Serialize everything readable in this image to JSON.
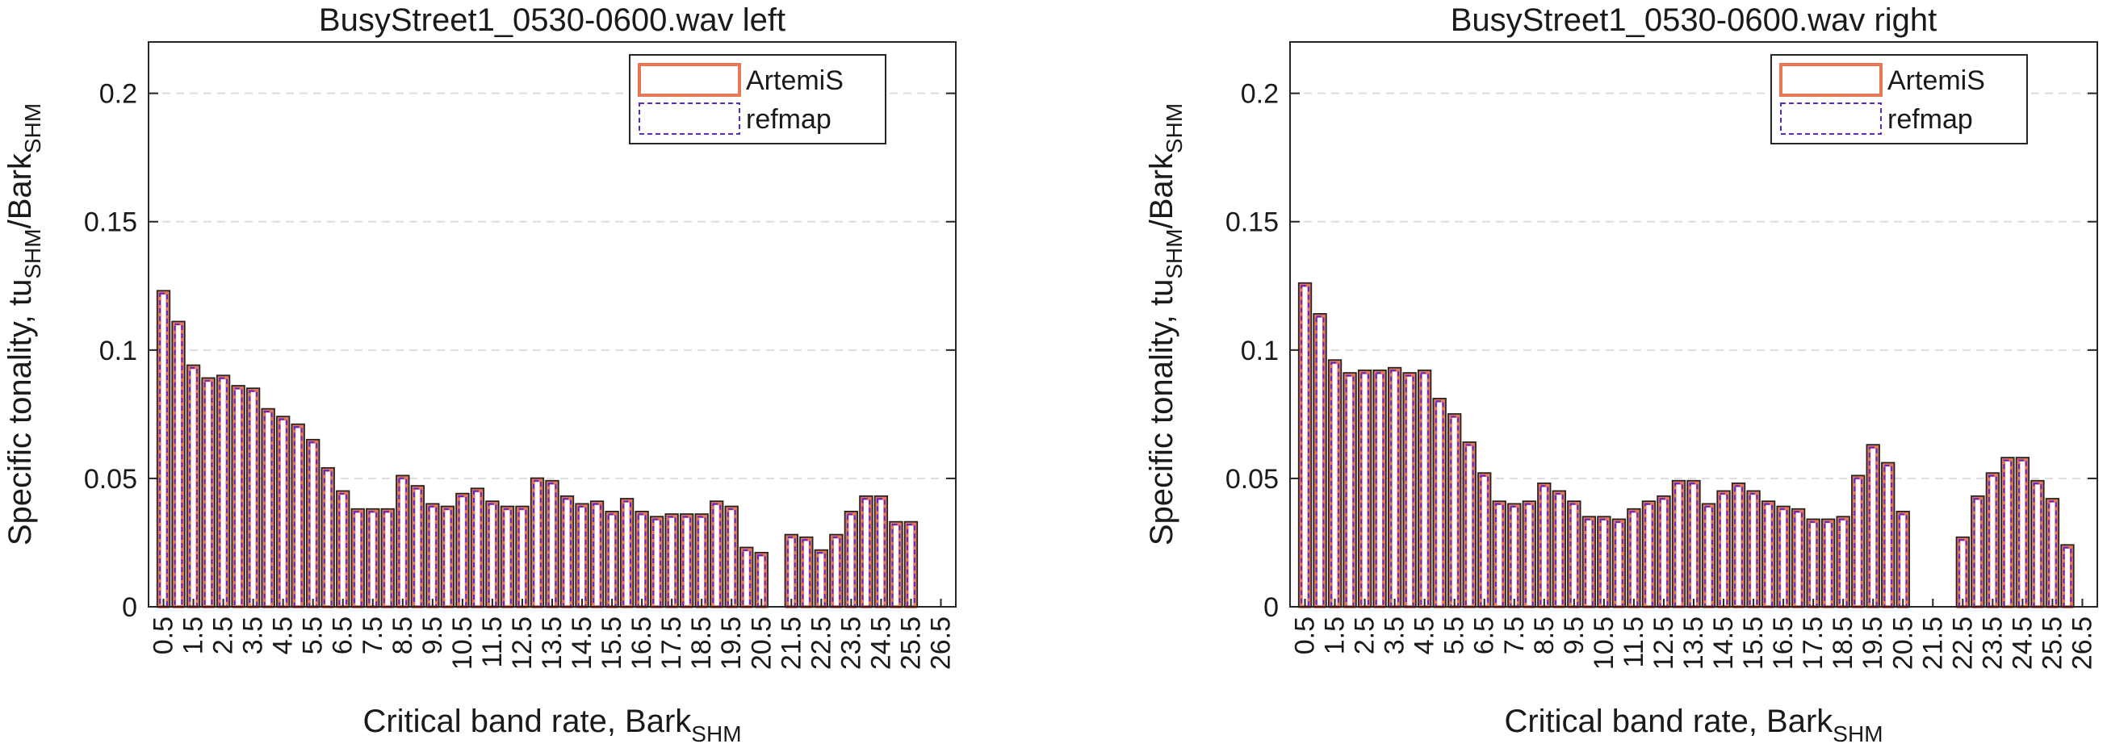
{
  "colors": {
    "artemis": "#e8775a",
    "refmap": "#5a2ad0",
    "outline": "#222222",
    "grid": "#dddddd"
  },
  "chart_data": [
    {
      "type": "bar",
      "title": "BusyStreet1_0530-0600.wav left",
      "xlabel_main": "Critical band rate, Bark",
      "xlabel_sub": "SHM",
      "ylabel_main": "Specific tonality, tu",
      "ylabel_sub1": "SHM",
      "ylabel_mid": "/Bark",
      "ylabel_sub2": "SHM",
      "ylim": [
        0,
        0.22
      ],
      "yticks": [
        0,
        0.05,
        0.1,
        0.15,
        0.2
      ],
      "ytick_labels": [
        "0",
        "0.05",
        "0.1",
        "0.15",
        "0.2"
      ],
      "xlim": [
        0,
        27
      ],
      "categories": [
        "0.5",
        "1.5",
        "2.5",
        "3.5",
        "4.5",
        "5.5",
        "6.5",
        "7.5",
        "8.5",
        "9.5",
        "10.5",
        "11.5",
        "12.5",
        "13.5",
        "14.5",
        "15.5",
        "16.5",
        "17.5",
        "18.5",
        "19.5",
        "20.5",
        "21.5",
        "22.5",
        "23.5",
        "24.5",
        "25.5",
        "26.5"
      ],
      "x": [
        0.5,
        1,
        1.5,
        2,
        2.5,
        3,
        3.5,
        4,
        4.5,
        5,
        5.5,
        6,
        6.5,
        7,
        7.5,
        8,
        8.5,
        9,
        9.5,
        10,
        10.5,
        11,
        11.5,
        12,
        12.5,
        13,
        13.5,
        14,
        14.5,
        15,
        15.5,
        16,
        16.5,
        17,
        17.5,
        18,
        18.5,
        19,
        19.5,
        20,
        20.5,
        21,
        21.5,
        22,
        22.5,
        23,
        23.5,
        24,
        24.5,
        25,
        25.5,
        26,
        26.5
      ],
      "series": [
        {
          "name": "ArtemiS",
          "values": [
            0.123,
            0.111,
            0.094,
            0.089,
            0.09,
            0.086,
            0.085,
            0.077,
            0.074,
            0.071,
            0.065,
            0.054,
            0.045,
            0.038,
            0.038,
            0.038,
            0.051,
            0.047,
            0.04,
            0.039,
            0.044,
            0.046,
            0.041,
            0.039,
            0.039,
            0.05,
            0.049,
            0.043,
            0.04,
            0.041,
            0.037,
            0.042,
            0.037,
            0.035,
            0.036,
            0.036,
            0.036,
            0.041,
            0.039,
            0.023,
            0.021,
            0,
            0.028,
            0.027,
            0.022,
            0.028,
            0.037,
            0.043,
            0.043,
            0.033,
            0.033,
            0,
            0
          ]
        },
        {
          "name": "refmap",
          "values": [
            0.123,
            0.111,
            0.094,
            0.089,
            0.09,
            0.086,
            0.085,
            0.077,
            0.074,
            0.071,
            0.065,
            0.054,
            0.045,
            0.038,
            0.038,
            0.038,
            0.051,
            0.047,
            0.04,
            0.039,
            0.044,
            0.046,
            0.041,
            0.039,
            0.039,
            0.05,
            0.049,
            0.043,
            0.04,
            0.041,
            0.037,
            0.042,
            0.037,
            0.035,
            0.036,
            0.036,
            0.036,
            0.041,
            0.039,
            0.023,
            0.021,
            0,
            0.028,
            0.027,
            0.022,
            0.028,
            0.037,
            0.043,
            0.043,
            0.033,
            0.033,
            0,
            0
          ]
        }
      ],
      "legend": [
        "ArtemiS",
        "refmap"
      ],
      "legend_position": "top-right",
      "grid": "y-dashed"
    },
    {
      "type": "bar",
      "title": "BusyStreet1_0530-0600.wav right",
      "xlabel_main": "Critical band rate, Bark",
      "xlabel_sub": "SHM",
      "ylabel_main": "Specific tonality, tu",
      "ylabel_sub1": "SHM",
      "ylabel_mid": "/Bark",
      "ylabel_sub2": "SHM",
      "ylim": [
        0,
        0.22
      ],
      "yticks": [
        0,
        0.05,
        0.1,
        0.15,
        0.2
      ],
      "ytick_labels": [
        "0",
        "0.05",
        "0.1",
        "0.15",
        "0.2"
      ],
      "xlim": [
        0,
        27
      ],
      "categories": [
        "0.5",
        "1.5",
        "2.5",
        "3.5",
        "4.5",
        "5.5",
        "6.5",
        "7.5",
        "8.5",
        "9.5",
        "10.5",
        "11.5",
        "12.5",
        "13.5",
        "14.5",
        "15.5",
        "16.5",
        "17.5",
        "18.5",
        "19.5",
        "20.5",
        "21.5",
        "22.5",
        "23.5",
        "24.5",
        "25.5",
        "26.5"
      ],
      "x": [
        0.5,
        1,
        1.5,
        2,
        2.5,
        3,
        3.5,
        4,
        4.5,
        5,
        5.5,
        6,
        6.5,
        7,
        7.5,
        8,
        8.5,
        9,
        9.5,
        10,
        10.5,
        11,
        11.5,
        12,
        12.5,
        13,
        13.5,
        14,
        14.5,
        15,
        15.5,
        16,
        16.5,
        17,
        17.5,
        18,
        18.5,
        19,
        19.5,
        20,
        20.5,
        21,
        21.5,
        22,
        22.5,
        23,
        23.5,
        24,
        24.5,
        25,
        25.5,
        26,
        26.5
      ],
      "series": [
        {
          "name": "ArtemiS",
          "values": [
            0.126,
            0.114,
            0.096,
            0.091,
            0.092,
            0.092,
            0.093,
            0.091,
            0.092,
            0.081,
            0.075,
            0.064,
            0.052,
            0.041,
            0.04,
            0.041,
            0.048,
            0.045,
            0.041,
            0.035,
            0.035,
            0.034,
            0.038,
            0.041,
            0.043,
            0.049,
            0.049,
            0.04,
            0.045,
            0.048,
            0.045,
            0.041,
            0.039,
            0.038,
            0.034,
            0.034,
            0.035,
            0.051,
            0.063,
            0.056,
            0.037,
            0,
            0,
            0,
            0.027,
            0.043,
            0.052,
            0.058,
            0.058,
            0.049,
            0.042,
            0.024,
            0
          ]
        },
        {
          "name": "refmap",
          "values": [
            0.126,
            0.114,
            0.096,
            0.091,
            0.092,
            0.092,
            0.093,
            0.091,
            0.092,
            0.081,
            0.075,
            0.064,
            0.052,
            0.041,
            0.04,
            0.041,
            0.048,
            0.045,
            0.041,
            0.035,
            0.035,
            0.034,
            0.038,
            0.041,
            0.043,
            0.049,
            0.049,
            0.04,
            0.045,
            0.048,
            0.045,
            0.041,
            0.039,
            0.038,
            0.034,
            0.034,
            0.035,
            0.051,
            0.063,
            0.056,
            0.037,
            0,
            0,
            0,
            0.027,
            0.043,
            0.052,
            0.058,
            0.058,
            0.049,
            0.042,
            0.024,
            0
          ]
        }
      ],
      "legend": [
        "ArtemiS",
        "refmap"
      ],
      "legend_position": "top-right",
      "grid": "y-dashed"
    }
  ]
}
